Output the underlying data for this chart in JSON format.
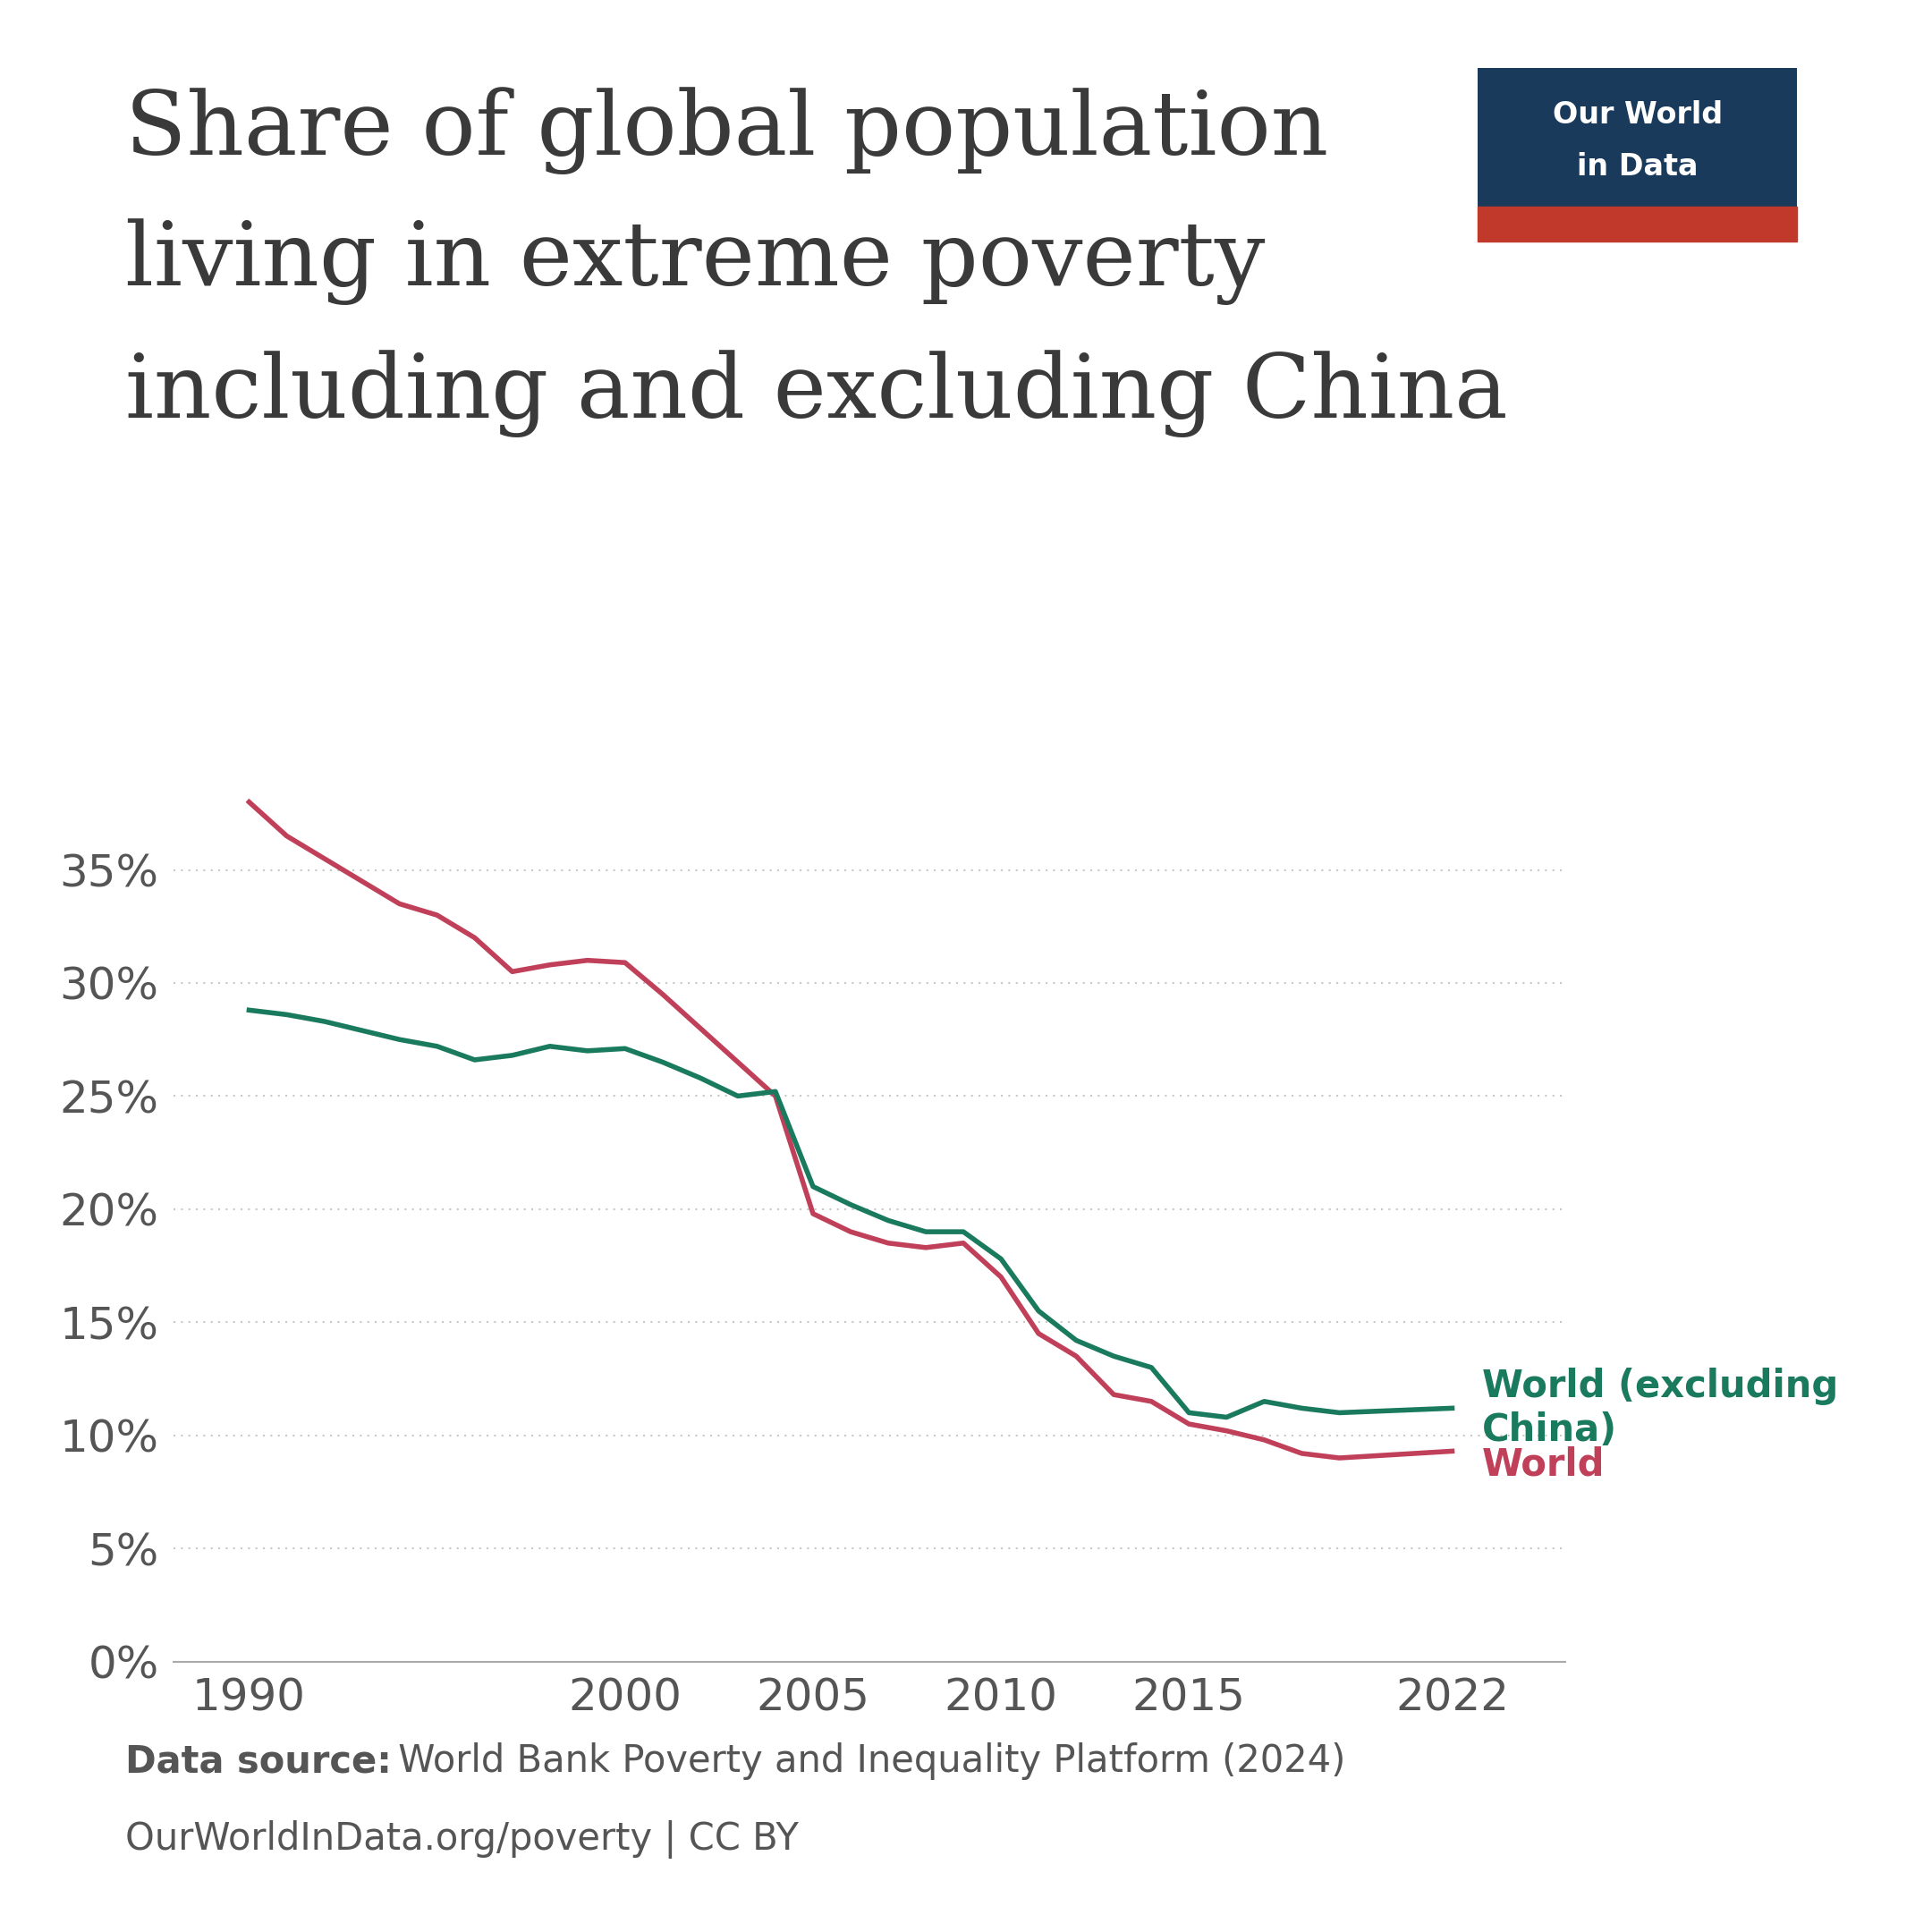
{
  "title_lines": [
    "Share of global population",
    "living in extreme poverty",
    "including and excluding China"
  ],
  "title_color": "#3a3a3a",
  "background_color": "#ffffff",
  "grid_color": "#c8c8c8",
  "world_color": "#c0405a",
  "excl_china_color": "#1a7a5e",
  "world_label": "World",
  "excl_china_label": "World (excluding\nChina)",
  "datasource_bold": "Data source:",
  "datasource_text": " World Bank Poverty and Inequality Platform (2024)",
  "datasource_line2": "OurWorldInData.org/poverty | CC BY",
  "logo_bg_color": "#1a3a5c",
  "logo_red_color": "#c0392b",
  "yticks": [
    0,
    5,
    10,
    15,
    20,
    25,
    30,
    35
  ],
  "ylim": [
    0,
    41
  ],
  "xticks": [
    1990,
    2000,
    2005,
    2010,
    2015,
    2022
  ],
  "xlim": [
    1988,
    2025
  ],
  "world_data": {
    "years": [
      1990,
      1991,
      1992,
      1993,
      1994,
      1995,
      1996,
      1997,
      1998,
      1999,
      2000,
      2001,
      2002,
      2003,
      2004,
      2005,
      2006,
      2007,
      2008,
      2009,
      2010,
      2011,
      2012,
      2013,
      2014,
      2015,
      2016,
      2017,
      2018,
      2019,
      2022
    ],
    "values": [
      38.0,
      36.5,
      35.5,
      34.5,
      33.5,
      33.0,
      32.0,
      30.5,
      30.8,
      31.0,
      30.9,
      29.5,
      28.0,
      26.5,
      25.0,
      19.8,
      19.0,
      18.5,
      18.3,
      18.5,
      17.0,
      14.5,
      13.5,
      11.8,
      11.5,
      10.5,
      10.2,
      9.8,
      9.2,
      9.0,
      9.3
    ]
  },
  "excl_china_data": {
    "years": [
      1990,
      1991,
      1992,
      1993,
      1994,
      1995,
      1996,
      1997,
      1998,
      1999,
      2000,
      2001,
      2002,
      2003,
      2004,
      2005,
      2006,
      2007,
      2008,
      2009,
      2010,
      2011,
      2012,
      2013,
      2014,
      2015,
      2016,
      2017,
      2018,
      2019,
      2022
    ],
    "values": [
      28.8,
      28.6,
      28.3,
      27.9,
      27.5,
      27.2,
      26.6,
      26.8,
      27.2,
      27.0,
      27.1,
      26.5,
      25.8,
      25.0,
      25.2,
      21.0,
      20.2,
      19.5,
      19.0,
      19.0,
      17.8,
      15.5,
      14.2,
      13.5,
      13.0,
      11.0,
      10.8,
      11.5,
      11.2,
      11.0,
      11.2
    ]
  }
}
